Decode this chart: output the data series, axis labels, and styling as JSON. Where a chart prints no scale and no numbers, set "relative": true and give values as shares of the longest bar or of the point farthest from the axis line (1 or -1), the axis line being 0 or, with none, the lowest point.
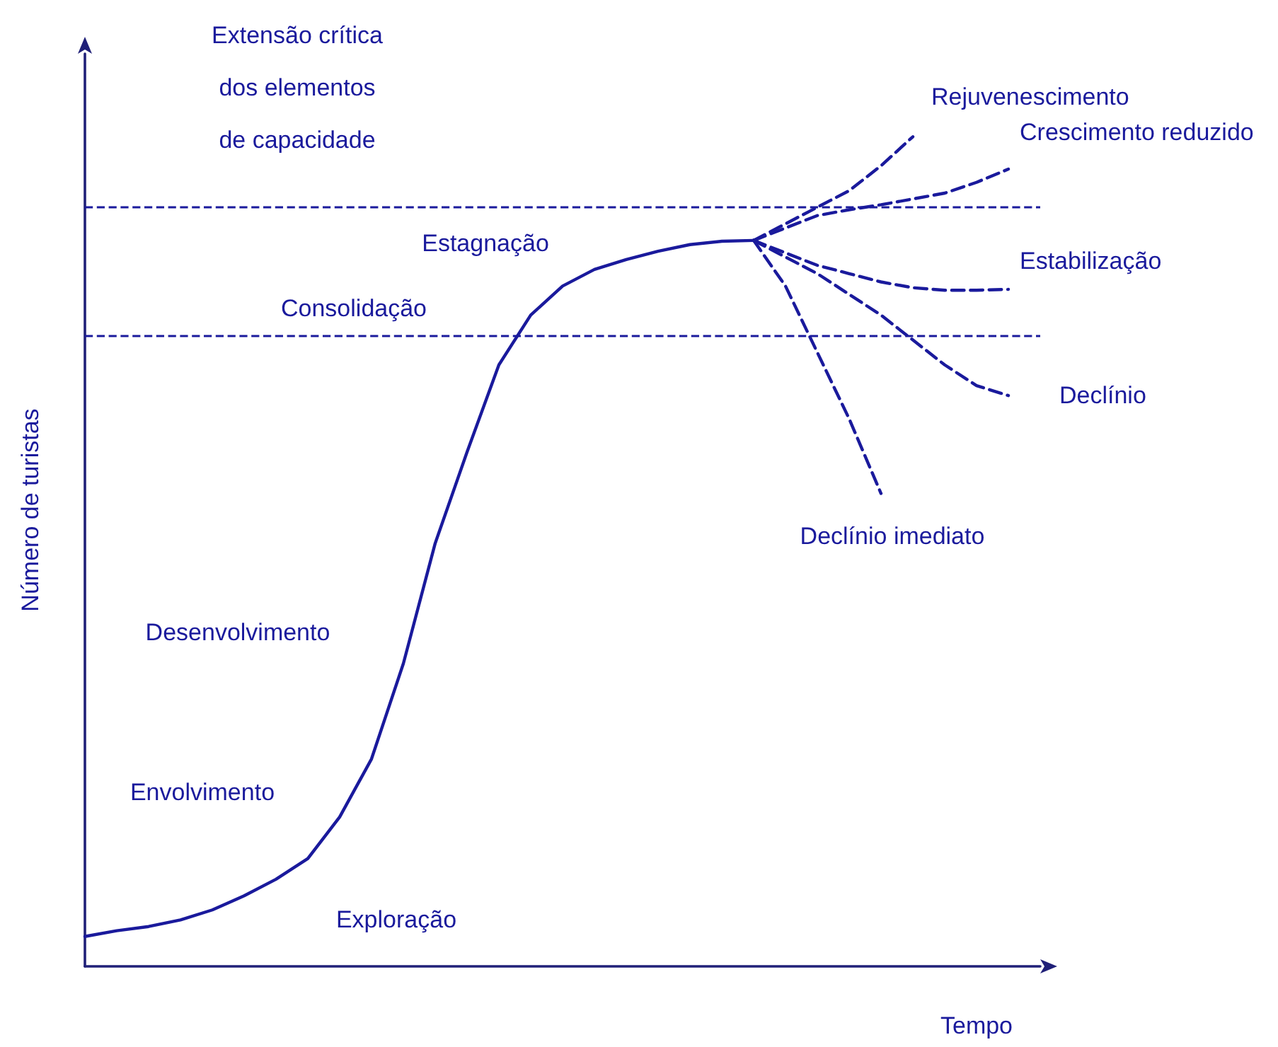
{
  "chart_data": {
    "type": "line",
    "relative": true,
    "xlabel": "Tempo",
    "ylabel": "Número de turistas",
    "grid": false,
    "legend": false,
    "marker": "none",
    "categories": [
      null,
      null,
      null,
      null,
      null,
      null,
      null,
      null,
      null,
      null,
      null,
      null,
      null,
      null,
      null,
      null,
      null,
      null,
      null,
      null,
      null,
      null,
      null,
      null,
      null,
      null,
      null,
      null,
      null,
      null,
      null
    ],
    "series": [
      {
        "color": "#1a1a9c",
        "line_style": "solid",
        "values": [
          0.036,
          0.043,
          0.048,
          0.056,
          0.068,
          0.085,
          0.105,
          0.13,
          0.18,
          0.25,
          0.365,
          0.51,
          0.62,
          0.725,
          0.785,
          0.82,
          0.84,
          0.852,
          0.862,
          0.87,
          0.874,
          0.875,
          null,
          null,
          null,
          null,
          null,
          null,
          null,
          null,
          null
        ]
      },
      {
        "name": "Rejuvenescimento",
        "color": "#1a1a9c",
        "line_style": "dashed",
        "values": [
          null,
          null,
          null,
          null,
          null,
          null,
          null,
          null,
          null,
          null,
          null,
          null,
          null,
          null,
          null,
          null,
          null,
          null,
          null,
          null,
          null,
          0.875,
          0.895,
          0.915,
          0.935,
          0.965,
          1,
          null,
          null,
          null,
          null
        ]
      },
      {
        "name": "Crescimento reduzido",
        "color": "#1a1a9c",
        "line_style": "dashed",
        "values": [
          null,
          null,
          null,
          null,
          null,
          null,
          null,
          null,
          null,
          null,
          null,
          null,
          null,
          null,
          null,
          null,
          null,
          null,
          null,
          null,
          null,
          0.875,
          0.89,
          0.905,
          0.912,
          0.918,
          0.925,
          0.932,
          0.945,
          0.961,
          null
        ]
      },
      {
        "name": "Estabilização",
        "color": "#1a1a9c",
        "line_style": "dashed",
        "values": [
          null,
          null,
          null,
          null,
          null,
          null,
          null,
          null,
          null,
          null,
          null,
          null,
          null,
          null,
          null,
          null,
          null,
          null,
          null,
          null,
          null,
          0.875,
          0.86,
          0.845,
          0.835,
          0.825,
          0.818,
          0.815,
          0.815,
          0.816,
          null
        ]
      },
      {
        "name": "Declínio",
        "color": "#1a1a9c",
        "line_style": "dashed",
        "values": [
          null,
          null,
          null,
          null,
          null,
          null,
          null,
          null,
          null,
          null,
          null,
          null,
          null,
          null,
          null,
          null,
          null,
          null,
          null,
          null,
          null,
          0.875,
          0.855,
          0.835,
          0.81,
          0.785,
          0.755,
          0.725,
          0.7,
          0.688,
          null
        ]
      },
      {
        "name": "Declínio imediato",
        "color": "#1a1a9c",
        "line_style": "dashed",
        "values": [
          null,
          null,
          null,
          null,
          null,
          null,
          null,
          null,
          null,
          null,
          null,
          null,
          null,
          null,
          null,
          null,
          null,
          null,
          null,
          null,
          null,
          0.875,
          0.82,
          0.74,
          0.66,
          0.57,
          null,
          null,
          null,
          null,
          null
        ]
      }
    ],
    "ref_lines": [
      {
        "axis": "y",
        "value": 0.916,
        "color": "#1a1a9c",
        "line_style": "dashed"
      },
      {
        "axis": "y",
        "value": 0.761,
        "color": "#1a1a9c",
        "line_style": "dashed"
      }
    ],
    "annotations": [
      "Extensão crítica\ndos elementos\nde capacidade",
      "Exploração",
      "Envolvimento",
      "Desenvolvimento",
      "Consolidação",
      "Estagnação"
    ]
  }
}
